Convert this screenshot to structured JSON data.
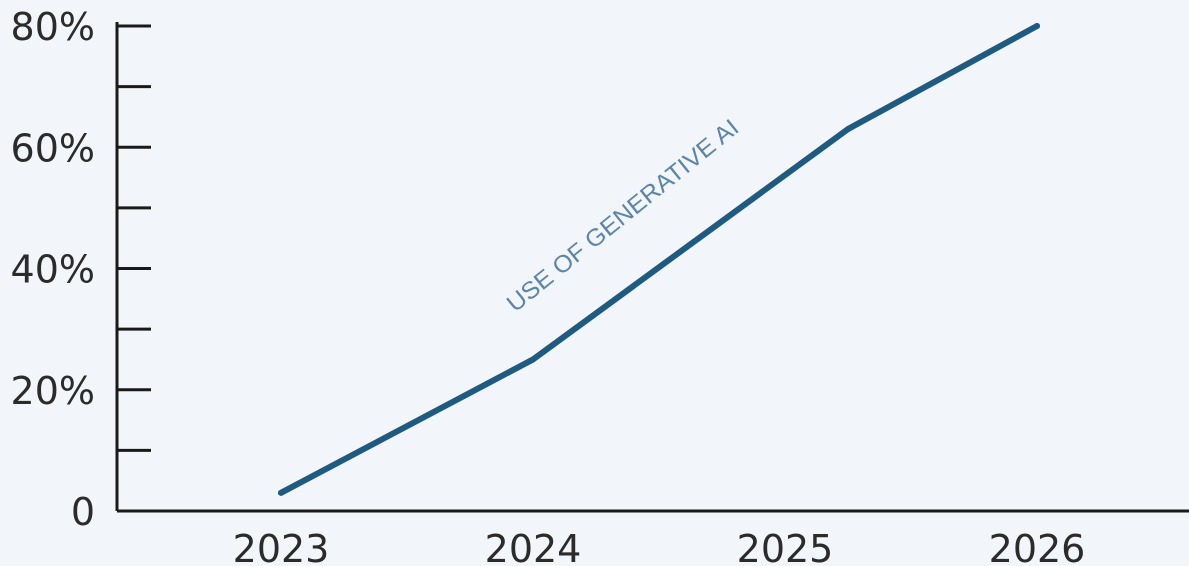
{
  "chart_data": {
    "type": "line",
    "categories": [
      "2023",
      "2024",
      "2025",
      "2026"
    ],
    "x": [
      2023,
      2024,
      2025.25,
      2026
    ],
    "series": [
      {
        "name": "USE OF GENERATIVE AI",
        "values": [
          3,
          25,
          63,
          80
        ],
        "color": "#1f5a80",
        "label_color": "#5b86a8"
      }
    ],
    "yticks": [
      {
        "value": 0,
        "label": "0"
      },
      {
        "value": 20,
        "label": "20%"
      },
      {
        "value": 40,
        "label": "40%"
      },
      {
        "value": 60,
        "label": "60%"
      },
      {
        "value": 80,
        "label": "80%"
      }
    ],
    "ylim": [
      0,
      80
    ],
    "minor_ytick_step": 10,
    "title": "",
    "xlabel": "",
    "ylabel": "",
    "grid": false,
    "legend": "inline label on line",
    "colors": {
      "background": "#f2f5f9",
      "axis": "#1a1a1a",
      "tick_text": "#2b2b2b"
    }
  }
}
